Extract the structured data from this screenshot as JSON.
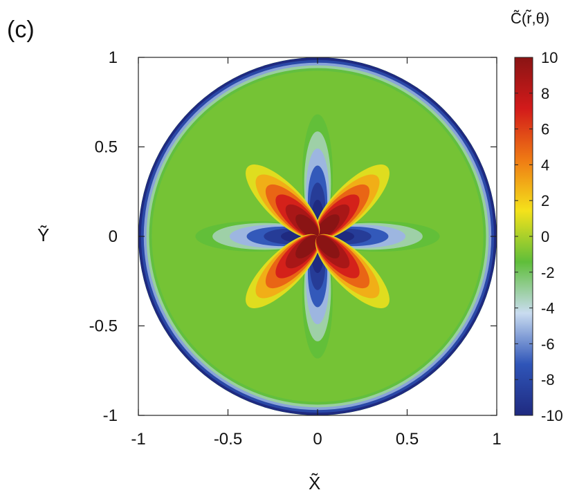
{
  "panel_label": "(c)",
  "colorbar_label": "C̃(r̃,θ)",
  "chart_data": {
    "type": "heatmap",
    "title": "",
    "xlabel": "X̃",
    "ylabel": "Ỹ",
    "xlim": [
      -1,
      1
    ],
    "ylim": [
      -1,
      1
    ],
    "domain_shape": "unit-disk",
    "x_ticks": [
      "-1",
      "-0.5",
      "0",
      "0.5",
      "1"
    ],
    "y_ticks": [
      "1",
      "0.5",
      "0",
      "-0.5",
      "-1"
    ],
    "x_tick_values": [
      -1,
      -0.5,
      0,
      0.5,
      1
    ],
    "y_tick_values": [
      1,
      0.5,
      0,
      -0.5,
      -1
    ],
    "colorbar": {
      "range": [
        -10,
        10
      ],
      "ticks": [
        "10",
        "8",
        "6",
        "4",
        "2",
        "0",
        "-2",
        "-4",
        "-6",
        "-8",
        "-10"
      ],
      "tick_values": [
        10,
        8,
        6,
        4,
        2,
        0,
        -2,
        -4,
        -6,
        -8,
        -10
      ],
      "colormap": [
        "#1f2a80",
        "#2f55b8",
        "#c9dcf0",
        "#5fbe3a",
        "#f4e21b",
        "#ef7a14",
        "#d21a1a",
        "#8a1414"
      ]
    },
    "features": [
      {
        "description": "negative lobes along axes",
        "angles_deg": [
          0,
          90,
          180,
          270
        ],
        "peak_value": -10
      },
      {
        "description": "positive lobes along diagonals",
        "angles_deg": [
          45,
          135,
          225,
          315
        ],
        "peak_value": 10
      },
      {
        "description": "background field",
        "value": -1
      },
      {
        "description": "boundary ring near r=1",
        "value": -10
      }
    ]
  }
}
